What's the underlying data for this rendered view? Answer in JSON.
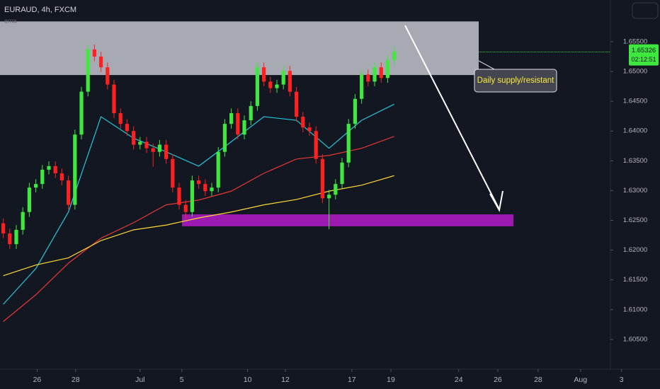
{
  "chart_data": {
    "type": "candlestick",
    "title": "EURAUD, 4h, FXCM",
    "indicator_label": "ema",
    "annotation": "Daily supply/resistant",
    "up_color": "#3ee83e",
    "down_color": "#ff2020",
    "open": [
      1.6245,
      1.6228,
      1.621,
      1.6234,
      1.6264,
      1.6305,
      1.6311,
      1.6335,
      1.6341,
      1.6329,
      1.6317,
      1.6276,
      1.6394,
      1.6466,
      1.6537,
      1.6525,
      1.6507,
      1.6478,
      1.643,
      1.6412,
      1.64,
      1.6377,
      1.6382,
      1.6371,
      1.6365,
      1.6377,
      1.6353,
      1.6305,
      1.6276,
      1.6264,
      1.6317,
      1.6311,
      1.6299,
      1.6305,
      1.6365,
      1.6412,
      1.643,
      1.6394,
      1.6418,
      1.6442,
      1.6507,
      1.6483,
      1.6472,
      1.6478,
      1.6501,
      1.6466,
      1.6424,
      1.6406,
      1.64,
      1.6353,
      1.6287,
      1.6293,
      1.6311,
      1.6347,
      1.6412,
      1.6454,
      1.6495,
      1.6483,
      1.6507,
      1.6489,
      1.6519
    ],
    "high": [
      1.6253,
      1.6236,
      1.6242,
      1.6272,
      1.6313,
      1.6319,
      1.6343,
      1.6349,
      1.6349,
      1.6337,
      1.6325,
      1.6402,
      1.6474,
      1.6545,
      1.6545,
      1.6533,
      1.6515,
      1.6486,
      1.6438,
      1.642,
      1.6408,
      1.639,
      1.639,
      1.6379,
      1.6385,
      1.6385,
      1.6361,
      1.6313,
      1.6284,
      1.6325,
      1.6325,
      1.6319,
      1.6313,
      1.6373,
      1.642,
      1.6438,
      1.6438,
      1.6426,
      1.645,
      1.6515,
      1.6515,
      1.6491,
      1.6486,
      1.6509,
      1.6509,
      1.6474,
      1.6432,
      1.6414,
      1.6408,
      1.6361,
      1.6301,
      1.6319,
      1.6355,
      1.642,
      1.6462,
      1.6503,
      1.6503,
      1.6515,
      1.6515,
      1.6527,
      1.6541
    ],
    "low": [
      1.622,
      1.6202,
      1.6202,
      1.6226,
      1.6256,
      1.6297,
      1.6303,
      1.6327,
      1.6321,
      1.6309,
      1.6268,
      1.6268,
      1.6386,
      1.6458,
      1.6517,
      1.6499,
      1.647,
      1.6422,
      1.6404,
      1.6392,
      1.6369,
      1.6369,
      1.6363,
      1.634,
      1.6357,
      1.6345,
      1.6297,
      1.6268,
      1.6252,
      1.6256,
      1.6303,
      1.6291,
      1.6291,
      1.6297,
      1.6357,
      1.6404,
      1.6386,
      1.6386,
      1.641,
      1.6434,
      1.6475,
      1.6464,
      1.6464,
      1.647,
      1.6458,
      1.6416,
      1.6398,
      1.6392,
      1.6345,
      1.6279,
      1.6235,
      1.6285,
      1.6303,
      1.6339,
      1.6404,
      1.6446,
      1.6475,
      1.6475,
      1.6481,
      1.6481,
      1.6511
    ],
    "close": [
      1.6228,
      1.621,
      1.6234,
      1.6264,
      1.6305,
      1.6311,
      1.6335,
      1.6341,
      1.6329,
      1.6317,
      1.6276,
      1.6394,
      1.6466,
      1.6537,
      1.6525,
      1.6507,
      1.6478,
      1.643,
      1.6412,
      1.64,
      1.6377,
      1.6382,
      1.6371,
      1.6365,
      1.6377,
      1.6353,
      1.6305,
      1.6276,
      1.6264,
      1.6317,
      1.6311,
      1.6299,
      1.6305,
      1.6365,
      1.6412,
      1.643,
      1.6394,
      1.6418,
      1.6442,
      1.6507,
      1.6483,
      1.6472,
      1.6478,
      1.6501,
      1.6466,
      1.6424,
      1.6406,
      1.64,
      1.6353,
      1.6287,
      1.6293,
      1.6311,
      1.6347,
      1.6412,
      1.6454,
      1.6495,
      1.6483,
      1.6507,
      1.6489,
      1.6519,
      1.6533
    ],
    "series": [
      {
        "color": "#26c6da",
        "x": [
          0,
          5,
          10,
          15,
          20,
          25,
          30,
          35,
          40,
          45,
          50,
          55,
          60
        ],
        "values": [
          1.6109,
          1.6169,
          1.6264,
          1.6424,
          1.6388,
          1.6365,
          1.6341,
          1.6382,
          1.6424,
          1.6418,
          1.6371,
          1.6418,
          1.6445
        ]
      },
      {
        "color": "#e53935",
        "x": [
          0,
          5,
          10,
          15,
          20,
          25,
          30,
          35,
          40,
          45,
          50,
          55,
          60
        ],
        "values": [
          1.608,
          1.6125,
          1.6178,
          1.622,
          1.6246,
          1.6276,
          1.6284,
          1.6299,
          1.6329,
          1.6353,
          1.6359,
          1.6371,
          1.6391
        ]
      },
      {
        "color": "#fdd835",
        "x": [
          0,
          5,
          10,
          15,
          20,
          25,
          30,
          35,
          40,
          45,
          50,
          55,
          60
        ],
        "values": [
          1.6157,
          1.6175,
          1.6187,
          1.6216,
          1.6234,
          1.6242,
          1.6254,
          1.6264,
          1.6276,
          1.6285,
          1.6299,
          1.6309,
          1.6325
        ]
      }
    ],
    "zones": [
      {
        "top": 1.6584,
        "bottom": 1.6494,
        "color": "#d1d4dc"
      },
      {
        "top": 1.626,
        "bottom": 1.624,
        "color": "#9c1ab1"
      }
    ],
    "last_price": {
      "value": 1.65326,
      "label": "1.65326"
    },
    "countdown": "02:12:51",
    "xlim": [
      -0.5,
      100.8
    ],
    "ylim": [
      1.6,
      1.662
    ],
    "xticks": [
      {
        "value": 5.2,
        "label": "26"
      },
      {
        "value": 11.1,
        "label": "28"
      },
      {
        "value": 21.0,
        "label": "Jul"
      },
      {
        "value": 27.4,
        "label": "5"
      },
      {
        "value": 37.5,
        "label": "10"
      },
      {
        "value": 43.3,
        "label": "12"
      },
      {
        "value": 53.5,
        "label": "17"
      },
      {
        "value": 59.5,
        "label": "19"
      },
      {
        "value": 69.9,
        "label": "24"
      },
      {
        "value": 75.9,
        "label": "26"
      },
      {
        "value": 82.1,
        "label": "28"
      },
      {
        "value": 88.6,
        "label": "Aug"
      },
      {
        "value": 94.9,
        "label": "3"
      }
    ],
    "yticks": [
      {
        "value": 1.605,
        "label": "1.60500"
      },
      {
        "value": 1.61,
        "label": "1.61000"
      },
      {
        "value": 1.615,
        "label": "1.61500"
      },
      {
        "value": 1.62,
        "label": "1.62000"
      },
      {
        "value": 1.625,
        "label": "1.62500"
      },
      {
        "value": 1.63,
        "label": "1.63000"
      },
      {
        "value": 1.635,
        "label": "1.63500"
      },
      {
        "value": 1.64,
        "label": "1.64000"
      },
      {
        "value": 1.645,
        "label": "1.64500"
      },
      {
        "value": 1.65,
        "label": "1.65000"
      },
      {
        "value": 1.655,
        "label": "1.65500"
      }
    ]
  }
}
